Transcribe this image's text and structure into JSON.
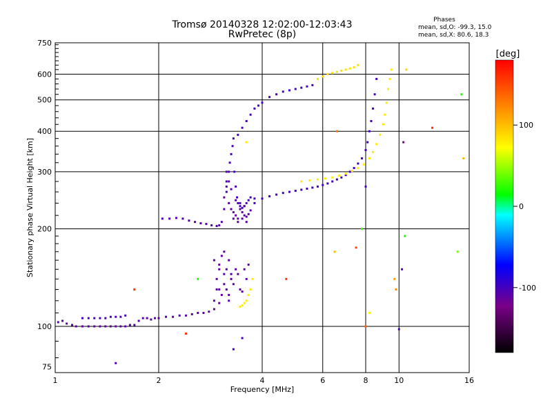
{
  "chart_data": {
    "type": "scatter",
    "title": "Tromsø 20140328 12:02:00-12:03:43",
    "subtitle": "RwPretec (8p)",
    "stats": {
      "header": "Phases",
      "line1": "mean, sd,O: -99.3, 15.0",
      "line2": "mean, sd,X:  80.6, 18.3"
    },
    "xlabel": "Frequency [MHz]",
    "ylabel": "Stationary phase Virtual Height [km]",
    "x_scale": "log",
    "y_scale": "log",
    "xlim": [
      1,
      16
    ],
    "ylim": [
      72,
      750
    ],
    "x_ticks": [
      1,
      2,
      4,
      6,
      8,
      10,
      16
    ],
    "x_tick_labels": [
      "1",
      "2",
      "4",
      "6",
      "8",
      "10",
      "16"
    ],
    "y_ticks": [
      75,
      100,
      200,
      300,
      400,
      500,
      600,
      750
    ],
    "y_tick_labels": [
      "75",
      "100",
      "200",
      "300",
      "400",
      "500",
      "600",
      "750"
    ],
    "grid": true,
    "colorbar": {
      "label": "[deg]",
      "range": [
        -180,
        180
      ],
      "ticks": [
        100,
        0,
        -100
      ],
      "tick_labels": [
        "100",
        "0",
        "-100"
      ],
      "colors": [
        "#000000",
        "#7a0088",
        "#0000ff",
        "#00ffff",
        "#00ff00",
        "#ffff00",
        "#ff0000"
      ]
    },
    "series": [
      {
        "role": "E-layer O trace",
        "phase": -110,
        "x": [
          1.02,
          1.05,
          1.08,
          1.12,
          1.15,
          1.2,
          1.25,
          1.3,
          1.35,
          1.4,
          1.45,
          1.5,
          1.55,
          1.6,
          1.65,
          1.7,
          1.75,
          1.8,
          1.85,
          1.9,
          1.95,
          2.0,
          2.1,
          2.2,
          2.3,
          2.4,
          2.5,
          2.6,
          2.7,
          2.8,
          2.9,
          3.0
        ],
        "y": [
          103,
          104,
          102,
          101,
          100,
          100,
          100,
          100,
          100,
          100,
          100,
          100,
          100,
          100,
          101,
          101,
          104,
          106,
          106,
          105,
          106,
          106,
          107,
          107,
          108,
          108,
          109,
          110,
          110,
          111,
          113,
          118
        ]
      },
      {
        "role": "E-layer upper band",
        "phase": -100,
        "x": [
          1.2,
          1.25,
          1.3,
          1.35,
          1.4,
          1.45,
          1.5,
          1.55,
          1.6
        ],
        "y": [
          106,
          106,
          106,
          106,
          106,
          107,
          107,
          107,
          108
        ]
      },
      {
        "role": "E-layer spread",
        "phase": -110,
        "x": [
          2.9,
          2.95,
          3.0,
          3.0,
          3.05,
          3.05,
          3.1,
          3.1,
          3.15,
          3.15,
          3.2,
          3.2,
          3.25,
          3.3,
          3.35,
          3.4,
          3.45,
          3.5,
          3.55,
          3.6,
          3.65,
          2.9,
          2.95,
          3.0,
          3.1,
          3.2,
          3.25
        ],
        "y": [
          120,
          140,
          155,
          130,
          165,
          125,
          170,
          145,
          150,
          130,
          160,
          120,
          140,
          135,
          150,
          145,
          130,
          128,
          150,
          140,
          155,
          160,
          130,
          150,
          135,
          125,
          145
        ]
      },
      {
        "role": "E-layer yellow",
        "phase": 80,
        "x": [
          3.45,
          3.5,
          3.55,
          3.6,
          3.65,
          3.7,
          3.75
        ],
        "y": [
          115,
          116,
          118,
          120,
          125,
          130,
          140
        ]
      },
      {
        "role": "F-layer O trace low",
        "phase": -105,
        "x": [
          2.05,
          2.15,
          2.25,
          2.35,
          2.45,
          2.55,
          2.65,
          2.75,
          2.85,
          2.95,
          3.0,
          3.05,
          3.1,
          3.15
        ],
        "y": [
          215,
          215,
          216,
          215,
          212,
          210,
          208,
          207,
          205,
          204,
          205,
          210,
          230,
          260
        ]
      },
      {
        "role": "F-layer O cusp",
        "phase": -100,
        "x": [
          3.15,
          3.2,
          3.22,
          3.25,
          3.28,
          3.3,
          3.32,
          3.35,
          3.38,
          3.4,
          3.45,
          3.5,
          3.55,
          3.6,
          3.65,
          3.7,
          3.8
        ],
        "y": [
          280,
          300,
          320,
          340,
          360,
          380,
          300,
          270,
          250,
          240,
          235,
          232,
          235,
          240,
          245,
          250,
          248
        ]
      },
      {
        "role": "F-layer spread",
        "phase": -110,
        "x": [
          3.1,
          3.15,
          3.2,
          3.25,
          3.3,
          3.35,
          3.4,
          3.45,
          3.5,
          3.55,
          3.6,
          3.65,
          3.7,
          3.2,
          3.25,
          3.35,
          3.45,
          3.55,
          3.15,
          3.3,
          3.4,
          3.5,
          3.6
        ],
        "y": [
          250,
          270,
          240,
          230,
          225,
          220,
          215,
          230,
          225,
          220,
          218,
          222,
          228,
          280,
          265,
          245,
          240,
          235,
          300,
          215,
          210,
          215,
          210
        ]
      },
      {
        "role": "F-layer O trace main",
        "phase": -100,
        "x": [
          3.8,
          4.0,
          4.2,
          4.4,
          4.6,
          4.8,
          5.0,
          5.2,
          5.4,
          5.6,
          5.8,
          6.0,
          6.2,
          6.4,
          6.6,
          6.8,
          7.0,
          7.2,
          7.4,
          7.6,
          7.8,
          8.0,
          8.1,
          8.2,
          8.3,
          8.4,
          8.5,
          8.6
        ],
        "y": [
          240,
          248,
          252,
          255,
          258,
          260,
          262,
          264,
          266,
          268,
          270,
          273,
          276,
          280,
          284,
          288,
          293,
          300,
          308,
          318,
          330,
          350,
          370,
          400,
          430,
          470,
          520,
          580
        ]
      },
      {
        "role": "F-layer X trace",
        "phase": 80,
        "x": [
          5.2,
          5.5,
          5.8,
          6.1,
          6.4,
          6.7,
          7.0,
          7.3,
          7.6,
          7.9,
          8.2,
          8.4,
          8.6,
          8.8,
          9.0,
          9.1,
          9.2,
          9.3,
          9.4,
          9.5
        ],
        "y": [
          280,
          282,
          284,
          286,
          288,
          292,
          296,
          302,
          308,
          316,
          330,
          345,
          365,
          390,
          420,
          450,
          490,
          540,
          580,
          620
        ]
      },
      {
        "role": "F-layer O upper",
        "phase": -100,
        "x": [
          3.4,
          3.5,
          3.6,
          3.7,
          3.8,
          3.9,
          4.0,
          4.2,
          4.4,
          4.6,
          4.8,
          5.0,
          5.2,
          5.4,
          5.6
        ],
        "y": [
          390,
          410,
          430,
          450,
          470,
          480,
          490,
          510,
          520,
          530,
          535,
          540,
          545,
          550,
          555
        ]
      },
      {
        "role": "F-layer yellow upper",
        "phase": 85,
        "x": [
          5.8,
          6.0,
          6.2,
          6.4,
          6.6,
          6.8,
          7.0,
          7.2,
          7.4,
          7.6
        ],
        "y": [
          580,
          590,
          600,
          605,
          610,
          615,
          620,
          625,
          630,
          640
        ]
      },
      {
        "role": "scattered points",
        "phase": 0,
        "x": [
          10.5,
          12.5,
          15.2,
          15.4,
          14.8,
          10.3,
          8.0,
          7.8,
          9.8,
          10.0,
          10.2,
          9.7,
          10.4,
          3.5,
          3.3,
          1.5,
          2.4,
          6.5,
          7.5,
          8.0,
          8.2,
          4.7,
          6.6,
          3.6,
          2.6,
          1.7
        ],
        "y": [
          620,
          410,
          520,
          330,
          170,
          370,
          270,
          200,
          130,
          98,
          150,
          140,
          190,
          92,
          85,
          77,
          95,
          170,
          175,
          100,
          110,
          140,
          400,
          370,
          140,
          130
        ],
        "phases": [
          90,
          160,
          20,
          100,
          40,
          -120,
          -100,
          30,
          120,
          -100,
          -110,
          110,
          20,
          -100,
          -100,
          -110,
          160,
          100,
          150,
          140,
          70,
          160,
          130,
          80,
          20,
          160
        ]
      }
    ]
  }
}
